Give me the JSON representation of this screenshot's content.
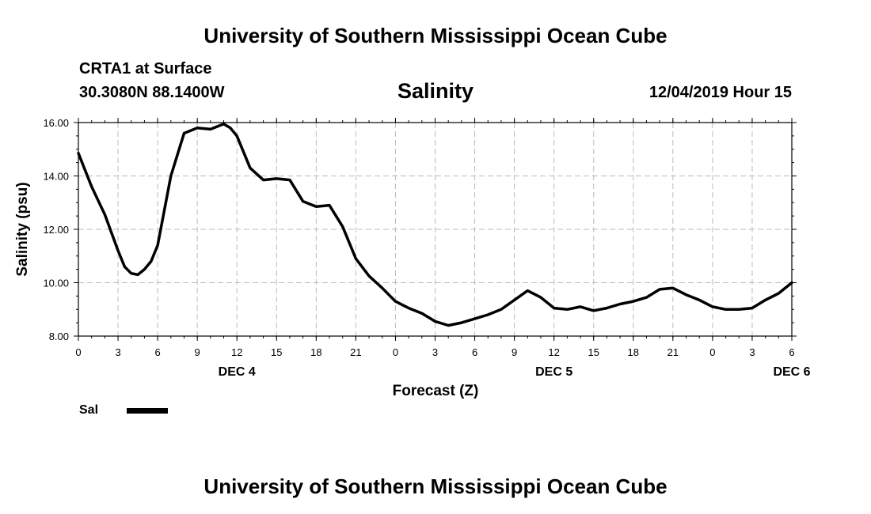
{
  "header": {
    "title": "University of Southern Mississippi Ocean Cube"
  },
  "footer": {
    "title": "University of Southern Mississippi Ocean Cube"
  },
  "station": {
    "name": "CRTA1 at Surface",
    "coords": "30.3080N 88.1400W"
  },
  "run_time": "12/04/2019 Hour 15",
  "legend": {
    "label": "Sal",
    "color": "#000000"
  },
  "chart_data": {
    "type": "line",
    "title": "Salinity",
    "xlabel": "Forecast (Z)",
    "ylabel": "Salinity (psu)",
    "xlim": [
      0,
      54
    ],
    "ylim": [
      8.0,
      16.0
    ],
    "grid": true,
    "y_ticks": [
      "8.00",
      "10.00",
      "12.00",
      "14.00",
      "16.00"
    ],
    "x_ticks": [
      {
        "h": 0,
        "label": "0"
      },
      {
        "h": 3,
        "label": "3"
      },
      {
        "h": 6,
        "label": "6"
      },
      {
        "h": 9,
        "label": "9"
      },
      {
        "h": 12,
        "label": "12"
      },
      {
        "h": 15,
        "label": "15"
      },
      {
        "h": 18,
        "label": "18"
      },
      {
        "h": 21,
        "label": "21"
      },
      {
        "h": 24,
        "label": "0"
      },
      {
        "h": 27,
        "label": "3"
      },
      {
        "h": 30,
        "label": "6"
      },
      {
        "h": 33,
        "label": "9"
      },
      {
        "h": 36,
        "label": "12"
      },
      {
        "h": 39,
        "label": "15"
      },
      {
        "h": 42,
        "label": "18"
      },
      {
        "h": 45,
        "label": "21"
      },
      {
        "h": 48,
        "label": "0"
      },
      {
        "h": 51,
        "label": "3"
      },
      {
        "h": 54,
        "label": "6"
      }
    ],
    "day_labels": [
      {
        "h": 12,
        "label": "DEC 4"
      },
      {
        "h": 36,
        "label": "DEC 5"
      },
      {
        "h": 54,
        "label": "DEC 6"
      }
    ],
    "series": [
      {
        "name": "Sal",
        "x": [
          0,
          1,
          2,
          3,
          3.5,
          4,
          4.5,
          5,
          5.5,
          6,
          7,
          8,
          9,
          10,
          11,
          11.5,
          12,
          13,
          14,
          15,
          16,
          17,
          18,
          19,
          20,
          21,
          22,
          23,
          24,
          25,
          26,
          27,
          28,
          29,
          30,
          31,
          32,
          33,
          34,
          35,
          36,
          37,
          38,
          39,
          40,
          41,
          42,
          43,
          44,
          45,
          46,
          47,
          48,
          49,
          50,
          51,
          52,
          53,
          54
        ],
        "values": [
          14.85,
          13.6,
          12.55,
          11.2,
          10.6,
          10.35,
          10.3,
          10.5,
          10.8,
          11.4,
          14.0,
          15.6,
          15.8,
          15.75,
          15.95,
          15.8,
          15.5,
          14.3,
          13.85,
          13.9,
          13.85,
          13.05,
          12.85,
          12.9,
          12.1,
          10.9,
          10.25,
          9.8,
          9.3,
          9.05,
          8.85,
          8.55,
          8.4,
          8.5,
          8.65,
          8.8,
          9.0,
          9.35,
          9.7,
          9.45,
          9.05,
          9.0,
          9.1,
          8.95,
          9.05,
          9.2,
          9.3,
          9.45,
          9.75,
          9.8,
          9.55,
          9.35,
          9.1,
          9.0,
          9.0,
          9.05,
          9.35,
          9.6,
          10.0
        ]
      }
    ]
  }
}
